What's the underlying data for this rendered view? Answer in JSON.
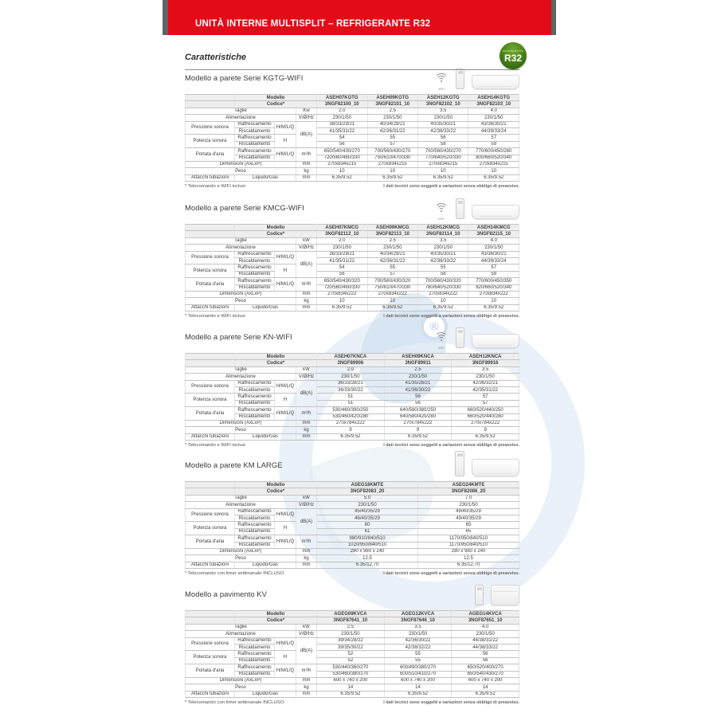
{
  "banner": {
    "title": "UNITÀ INTERNE MULTISPLIT – REFRIGERANTE R32"
  },
  "page": {
    "heading": "Caratteristiche",
    "r32_badge": {
      "small": "REFRIGERANTE",
      "big": "R32"
    },
    "footnote_right": "I dati tecnici sono soggetti a variazioni senza obbligo di preavviso."
  },
  "labels": {
    "modello": "Modello",
    "codice": "Codice*",
    "taglie": "Taglie",
    "alimentazione": "Alimentazione",
    "pressione": "Pressione sonora",
    "potenza": "Potenza sonora",
    "portata": "Portata d'aria",
    "dimensioni": "Dimensioni (AxLxP)",
    "peso": "Peso",
    "attacchi": "Attacchi tubazioni",
    "raffrescamento": "Raffrescamento",
    "riscaldamento": "Riscaldamento",
    "liquido_gas": "Liquido/Gas",
    "hmlq": "H/M/L/Q",
    "h": "H",
    "wifi": "WIFI"
  },
  "units": {
    "power_supply": "V/Ø/Hz",
    "db": "dB(A)",
    "flow": "m³/h",
    "mm": "mm",
    "kg": "kg"
  },
  "sections": [
    {
      "title": "Modello a parete Serie KGTG-WIFI",
      "icons": [
        "wifi-icon",
        "remote-image",
        "wall-unit-image"
      ],
      "kw_unit": "Kw",
      "models": [
        "ASEH07KGTG",
        "ASEH09KGTG",
        "ASEH12KGTG",
        "ASEH14KGTG"
      ],
      "codes": [
        "3NGF82100_10",
        "3NGF82101_10",
        "3NGF82102_10",
        "3NGF82103_10"
      ],
      "taglie": [
        "2.0",
        "2.5",
        "3.5",
        "4.0"
      ],
      "alimentazione": [
        "230/1/50",
        "230/1/50",
        "230/1/50",
        "230/1/50"
      ],
      "pressione_raff": [
        "38/33/29/21",
        "40/34/29/21",
        "40/35/30/21",
        "43/36/30/21"
      ],
      "pressione_risc": [
        "41/35/31/22",
        "42/36/31/22",
        "42/38/33/22",
        "44/39/33/24"
      ],
      "potenza_raff": [
        "54",
        "55",
        "56",
        "57"
      ],
      "potenza_risc": [
        "56",
        "57",
        "58",
        "59"
      ],
      "portata_raff": [
        "650/540/430/270",
        "700/560/430/270",
        "700/560/430/270",
        "770/600/450/280"
      ],
      "portata_risc": [
        "720/560/460/330",
        "750/610/470/330",
        "770/640/520/330",
        "800/660/520/340"
      ],
      "dimensioni": [
        "270x834x215",
        "270x834x215",
        "270x834x215",
        "270x834x215"
      ],
      "peso": [
        "10",
        "10",
        "10",
        "10"
      ],
      "attacchi": [
        "6.35/9.52",
        "6.35/9.52",
        "6.35/9.52",
        "6.35/9.52"
      ],
      "footnote_left": "* Telecomando e WIFI inclusi"
    },
    {
      "title": "Modello a parete Serie KMCG-WIFI",
      "icons": [
        "wifi-icon",
        "remote-image",
        "wall-unit-image"
      ],
      "kw_unit": "kW",
      "models": [
        "ASEH07KMCG",
        "ASEH09KMCG",
        "ASEH12KMCG",
        "ASEH14KMCG"
      ],
      "codes": [
        "3NGF82112_10",
        "3NGF82113_10",
        "3NGF82114_10",
        "3NGF82115_10"
      ],
      "taglie": [
        "2.0",
        "2.5",
        "3.5",
        "4.0"
      ],
      "alimentazione": [
        "230/1/50",
        "230/1/50",
        "230/1/50",
        "230/1/50"
      ],
      "pressione_raff": [
        "38/33/29/21",
        "40/34/29/21",
        "40/35/30/21",
        "43/36/30/21"
      ],
      "pressione_risc": [
        "41/35/31/22",
        "42/36/31/22",
        "42/38/33/22",
        "44/39/33/24"
      ],
      "potenza_raff": [
        "54",
        "55",
        "55",
        "57"
      ],
      "potenza_risc": [
        "56",
        "57",
        "58",
        "59"
      ],
      "portata_raff": [
        "650/540/430/320",
        "700/560/430/320",
        "700/560/430/320",
        "770/600/450/350"
      ],
      "portata_risc": [
        "720/560/460/330",
        "750/610/470/330",
        "780/640/520/330",
        "820/660/520/340"
      ],
      "dimensioni": [
        "270x834x222",
        "270x834x222",
        "270x834x222",
        "270x834x222"
      ],
      "peso": [
        "10",
        "10",
        "10",
        "10"
      ],
      "attacchi": [
        "6.35/9.52",
        "6.35/9.52",
        "6.35/9.52",
        "6.35/9.52"
      ],
      "footnote_left": "* Telecomando e WIFI inclusi"
    },
    {
      "title": "Modello a parete Serie KN-WIFI",
      "icons": [
        "wifi-icon",
        "remote-image",
        "wall-unit-image"
      ],
      "kw_unit": "kW",
      "models": [
        "ASEH07KNCA",
        "ASEH09KNCA",
        "ASEH12KNCA"
      ],
      "codes": [
        "3NGF89906",
        "3NGF89911",
        "3NGF89916"
      ],
      "taglie": [
        "2.0",
        "2.5",
        "3.5"
      ],
      "alimentazione": [
        "230/1/50",
        "230/1/50",
        "230/1/50"
      ],
      "pressione_raff": [
        "36/33/28/21",
        "41/35/28/21",
        "42/36/32/21"
      ],
      "pressione_risc": [
        "36/33/30/22",
        "41/36/30/22",
        "42/35/31/22"
      ],
      "potenza_raff": [
        "51",
        "56",
        "57"
      ],
      "potenza_risc": [
        "51",
        "56",
        "57"
      ],
      "portata_raff": [
        "530/460/390/250",
        "640/580/380/250",
        "660/520/440/250"
      ],
      "portata_risc": [
        "530/460/420/280",
        "640/580/420/280",
        "660/520/440/280"
      ],
      "dimensioni": [
        "270x784x222",
        "270x784x222",
        "270x784x222"
      ],
      "peso": [
        "9",
        "9",
        "9"
      ],
      "attacchi": [
        "6.35/9.52",
        "6.35/9.52",
        "6.35/9.52"
      ],
      "footnote_left": "* Telecomando e WIFI inclusi"
    },
    {
      "title": "Modello a parete KM LARGE",
      "icons": [
        "remote-tall-image",
        "wall-unit-large-image"
      ],
      "kw_unit": "kW",
      "models": [
        "ASEG18KMTE",
        "ASEG24KMTE"
      ],
      "codes": [
        "3NGF82083_20",
        "3NGF82086_20"
      ],
      "taglie": [
        "5.0",
        "7.0"
      ],
      "alimentazione": [
        "230/1/50",
        "230/1/50"
      ],
      "pressione_raff": [
        "45/40/35/29",
        "49/40/35/29"
      ],
      "pressione_risc": [
        "46/40/35/29",
        "49/40/35/29"
      ],
      "potenza_raff": [
        "60",
        "65"
      ],
      "potenza_risc": [
        "61",
        "65"
      ],
      "portata_raff": [
        "980/910/840/510",
        "1170/950/840/510"
      ],
      "portata_risc": [
        "1020/950/840/510",
        "1170/950/840/510"
      ],
      "dimensioni": [
        "280 x 980 x 240",
        "280 x 980 x 240"
      ],
      "peso": [
        "12.5",
        "12.5"
      ],
      "attacchi": [
        "6.35/12.70",
        "6.35/12.70"
      ],
      "footnote_left": "* Telecomando con timer settimanale INCLUSO"
    },
    {
      "title": "Modello a pavimento KV",
      "icons": [
        "remote-image",
        "floor-unit-image"
      ],
      "kw_unit": "kW",
      "models": [
        "AGEG09KVCA",
        "AGEG12KVCA",
        "AGEG14KVCA"
      ],
      "codes": [
        "3NGF87641_10",
        "3NGF87646_10",
        "3NGF87651_10"
      ],
      "taglie": [
        "2.5",
        "3.5",
        "4.0"
      ],
      "alimentazione": [
        "230/1/50",
        "230/1/50",
        "230/1/50"
      ],
      "pressione_raff": [
        "39/34/28/22",
        "42/36/30/22",
        "44/38/31/22"
      ],
      "pressione_risc": [
        "39/35/30/22",
        "42/38/32/22",
        "44/38/33/22"
      ],
      "potenza_raff": [
        "52",
        "55",
        "56"
      ],
      "potenza_risc": [
        "52",
        "55",
        "56"
      ],
      "portata_raff": [
        "530/440/360/270",
        "600/490/380/270",
        "650/520/400/270"
      ],
      "portata_risc": [
        "530/460/380/270",
        "600/510/410/270",
        "650/540/430/270"
      ],
      "dimensioni": [
        "600 x 740 x 200",
        "600 x 740 x 200",
        "600 x 740 x 200"
      ],
      "peso": [
        "14",
        "14",
        "14"
      ],
      "attacchi": [
        "6.35/9.52",
        "6.35/9.52",
        "6.35/9.52"
      ],
      "footnote_left": "* Telecomando con timer settimanale INCLUSO"
    }
  ],
  "colors": {
    "banner_red": "#e30b17",
    "model_red": "#c8101e",
    "divider_red": "#b5212d",
    "badge_green": "#447c15",
    "watermark_blue": "#dfe9f4"
  }
}
